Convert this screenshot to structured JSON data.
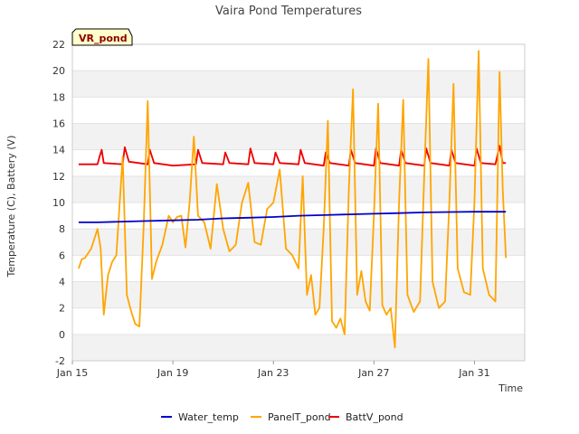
{
  "chart_data": {
    "type": "line",
    "title": "Vaira Pond Temperatures",
    "tag": "VR_pond",
    "xlabel": "Time",
    "ylabel": "Temperature (C), Battery (V)",
    "ylim": [
      -2,
      22
    ],
    "yticks": [
      -2,
      0,
      2,
      4,
      6,
      8,
      10,
      12,
      14,
      16,
      18,
      20,
      22
    ],
    "xlim": [
      "2024-01-15",
      "2024-02-02"
    ],
    "xticks": [
      {
        "date": "2024-01-15",
        "label": "Jan 15"
      },
      {
        "date": "2024-01-19",
        "label": "Jan 19"
      },
      {
        "date": "2024-01-23",
        "label": "Jan 23"
      },
      {
        "date": "2024-01-27",
        "label": "Jan 27"
      },
      {
        "date": "2024-01-31",
        "label": "Jan 31"
      }
    ],
    "grid": "horizontal-bands",
    "legend": "bottom",
    "series": [
      {
        "name": "Water_temp",
        "color": "#0000cc",
        "points": [
          [
            "2024-01-15 06:00",
            8.5
          ],
          [
            "2024-01-16 00:00",
            8.5
          ],
          [
            "2024-01-17 00:00",
            8.55
          ],
          [
            "2024-01-18 00:00",
            8.6
          ],
          [
            "2024-01-19 00:00",
            8.65
          ],
          [
            "2024-01-20 00:00",
            8.7
          ],
          [
            "2024-01-21 00:00",
            8.8
          ],
          [
            "2024-01-22 00:00",
            8.85
          ],
          [
            "2024-01-23 00:00",
            8.9
          ],
          [
            "2024-01-24 00:00",
            9.0
          ],
          [
            "2024-01-25 00:00",
            9.05
          ],
          [
            "2024-01-26 00:00",
            9.1
          ],
          [
            "2024-01-27 00:00",
            9.15
          ],
          [
            "2024-01-28 00:00",
            9.2
          ],
          [
            "2024-01-29 00:00",
            9.25
          ],
          [
            "2024-01-30 00:00",
            9.28
          ],
          [
            "2024-01-31 00:00",
            9.3
          ],
          [
            "2024-02-01 00:00",
            9.3
          ],
          [
            "2024-02-01 06:00",
            9.3
          ]
        ]
      },
      {
        "name": "PanelT_pond",
        "color": "#ffa500",
        "points": [
          [
            "2024-01-15 06:00",
            5.0
          ],
          [
            "2024-01-15 09:00",
            5.7
          ],
          [
            "2024-01-15 12:00",
            5.8
          ],
          [
            "2024-01-15 18:00",
            6.5
          ],
          [
            "2024-01-16 00:00",
            8.0
          ],
          [
            "2024-01-16 03:00",
            6.5
          ],
          [
            "2024-01-16 06:00",
            1.5
          ],
          [
            "2024-01-16 10:00",
            4.5
          ],
          [
            "2024-01-16 14:00",
            5.5
          ],
          [
            "2024-01-16 18:00",
            6.0
          ],
          [
            "2024-01-17 00:00",
            13.5
          ],
          [
            "2024-01-17 04:00",
            3.0
          ],
          [
            "2024-01-17 08:00",
            1.8
          ],
          [
            "2024-01-17 12:00",
            0.8
          ],
          [
            "2024-01-17 16:00",
            0.6
          ],
          [
            "2024-01-17 20:00",
            8.0
          ],
          [
            "2024-01-18 00:00",
            17.7
          ],
          [
            "2024-01-18 04:00",
            4.2
          ],
          [
            "2024-01-18 08:00",
            5.5
          ],
          [
            "2024-01-18 14:00",
            6.8
          ],
          [
            "2024-01-18 20:00",
            9.0
          ],
          [
            "2024-01-19 00:00",
            8.5
          ],
          [
            "2024-01-19 04:00",
            8.9
          ],
          [
            "2024-01-19 08:00",
            9.0
          ],
          [
            "2024-01-19 12:00",
            6.6
          ],
          [
            "2024-01-19 16:00",
            10.0
          ],
          [
            "2024-01-19 20:00",
            15.0
          ],
          [
            "2024-01-20 00:00",
            9.0
          ],
          [
            "2024-01-20 06:00",
            8.5
          ],
          [
            "2024-01-20 12:00",
            6.5
          ],
          [
            "2024-01-20 18:00",
            11.4
          ],
          [
            "2024-01-21 00:00",
            8.0
          ],
          [
            "2024-01-21 06:00",
            6.3
          ],
          [
            "2024-01-21 12:00",
            6.8
          ],
          [
            "2024-01-21 18:00",
            10.0
          ],
          [
            "2024-01-22 00:00",
            11.5
          ],
          [
            "2024-01-22 06:00",
            7.0
          ],
          [
            "2024-01-22 12:00",
            6.8
          ],
          [
            "2024-01-22 18:00",
            9.5
          ],
          [
            "2024-01-23 00:00",
            10.0
          ],
          [
            "2024-01-23 06:00",
            12.5
          ],
          [
            "2024-01-23 12:00",
            6.5
          ],
          [
            "2024-01-23 18:00",
            6.0
          ],
          [
            "2024-01-24 00:00",
            5.0
          ],
          [
            "2024-01-24 04:00",
            12.0
          ],
          [
            "2024-01-24 08:00",
            3.0
          ],
          [
            "2024-01-24 12:00",
            4.5
          ],
          [
            "2024-01-24 16:00",
            1.5
          ],
          [
            "2024-01-24 20:00",
            2.0
          ],
          [
            "2024-01-25 00:00",
            8.0
          ],
          [
            "2024-01-25 04:00",
            16.2
          ],
          [
            "2024-01-25 08:00",
            1.0
          ],
          [
            "2024-01-25 12:00",
            0.5
          ],
          [
            "2024-01-25 16:00",
            1.2
          ],
          [
            "2024-01-25 20:00",
            0.0
          ],
          [
            "2024-01-26 00:00",
            11.0
          ],
          [
            "2024-01-26 04:00",
            18.6
          ],
          [
            "2024-01-26 08:00",
            3.0
          ],
          [
            "2024-01-26 12:00",
            4.8
          ],
          [
            "2024-01-26 16:00",
            2.5
          ],
          [
            "2024-01-26 20:00",
            1.8
          ],
          [
            "2024-01-27 00:00",
            9.0
          ],
          [
            "2024-01-27 04:00",
            17.5
          ],
          [
            "2024-01-27 08:00",
            2.2
          ],
          [
            "2024-01-27 12:00",
            1.5
          ],
          [
            "2024-01-27 16:00",
            2.0
          ],
          [
            "2024-01-27 20:00",
            -1.0
          ],
          [
            "2024-01-28 00:00",
            10.0
          ],
          [
            "2024-01-28 04:00",
            17.8
          ],
          [
            "2024-01-28 08:00",
            3.0
          ],
          [
            "2024-01-28 14:00",
            1.7
          ],
          [
            "2024-01-28 20:00",
            2.5
          ],
          [
            "2024-01-29 00:00",
            12.0
          ],
          [
            "2024-01-29 04:00",
            20.9
          ],
          [
            "2024-01-29 08:00",
            4.0
          ],
          [
            "2024-01-29 14:00",
            2.0
          ],
          [
            "2024-01-29 20:00",
            2.5
          ],
          [
            "2024-01-30 00:00",
            10.0
          ],
          [
            "2024-01-30 04:00",
            19.0
          ],
          [
            "2024-01-30 08:00",
            5.0
          ],
          [
            "2024-01-30 14:00",
            3.2
          ],
          [
            "2024-01-30 20:00",
            3.0
          ],
          [
            "2024-01-31 00:00",
            10.0
          ],
          [
            "2024-01-31 04:00",
            21.5
          ],
          [
            "2024-01-31 08:00",
            5.0
          ],
          [
            "2024-01-31 14:00",
            3.0
          ],
          [
            "2024-01-31 20:00",
            2.5
          ],
          [
            "2024-02-01 00:00",
            19.9
          ],
          [
            "2024-02-01 03:00",
            11.0
          ],
          [
            "2024-02-01 06:00",
            5.8
          ]
        ]
      },
      {
        "name": "BattV_pond",
        "color": "#ee0000",
        "points": [
          [
            "2024-01-15 06:00",
            12.9
          ],
          [
            "2024-01-16 00:00",
            12.9
          ],
          [
            "2024-01-16 02:00",
            13.5
          ],
          [
            "2024-01-16 04:00",
            14.0
          ],
          [
            "2024-01-16 06:00",
            13.0
          ],
          [
            "2024-01-17 00:00",
            12.9
          ],
          [
            "2024-01-17 02:00",
            14.2
          ],
          [
            "2024-01-17 06:00",
            13.1
          ],
          [
            "2024-01-18 00:00",
            12.9
          ],
          [
            "2024-01-18 02:00",
            14.0
          ],
          [
            "2024-01-18 06:00",
            13.0
          ],
          [
            "2024-01-19 00:00",
            12.8
          ],
          [
            "2024-01-19 22:00",
            12.9
          ],
          [
            "2024-01-20 00:00",
            14.0
          ],
          [
            "2024-01-20 04:00",
            13.0
          ],
          [
            "2024-01-21 00:00",
            12.9
          ],
          [
            "2024-01-21 02:00",
            13.8
          ],
          [
            "2024-01-21 06:00",
            13.0
          ],
          [
            "2024-01-22 00:00",
            12.9
          ],
          [
            "2024-01-22 02:00",
            14.1
          ],
          [
            "2024-01-22 06:00",
            13.0
          ],
          [
            "2024-01-23 00:00",
            12.9
          ],
          [
            "2024-01-23 02:00",
            13.8
          ],
          [
            "2024-01-23 06:00",
            13.0
          ],
          [
            "2024-01-24 00:00",
            12.9
          ],
          [
            "2024-01-24 02:00",
            14.0
          ],
          [
            "2024-01-24 06:00",
            13.0
          ],
          [
            "2024-01-25 00:00",
            12.8
          ],
          [
            "2024-01-25 02:00",
            13.8
          ],
          [
            "2024-01-25 06:00",
            13.0
          ],
          [
            "2024-01-26 00:00",
            12.8
          ],
          [
            "2024-01-26 02:00",
            14.0
          ],
          [
            "2024-01-26 06:00",
            13.0
          ],
          [
            "2024-01-27 00:00",
            12.8
          ],
          [
            "2024-01-27 02:00",
            14.1
          ],
          [
            "2024-01-27 06:00",
            13.0
          ],
          [
            "2024-01-28 00:00",
            12.8
          ],
          [
            "2024-01-28 02:00",
            14.0
          ],
          [
            "2024-01-28 06:00",
            13.0
          ],
          [
            "2024-01-29 00:00",
            12.8
          ],
          [
            "2024-01-29 02:00",
            14.1
          ],
          [
            "2024-01-29 06:00",
            13.0
          ],
          [
            "2024-01-30 00:00",
            12.8
          ],
          [
            "2024-01-30 02:00",
            14.0
          ],
          [
            "2024-01-30 06:00",
            13.0
          ],
          [
            "2024-01-31 00:00",
            12.8
          ],
          [
            "2024-01-31 02:00",
            14.1
          ],
          [
            "2024-01-31 06:00",
            13.0
          ],
          [
            "2024-01-31 20:00",
            12.9
          ],
          [
            "2024-02-01 00:00",
            14.3
          ],
          [
            "2024-02-01 03:00",
            13.0
          ],
          [
            "2024-02-01 06:00",
            13.0
          ]
        ]
      }
    ]
  }
}
